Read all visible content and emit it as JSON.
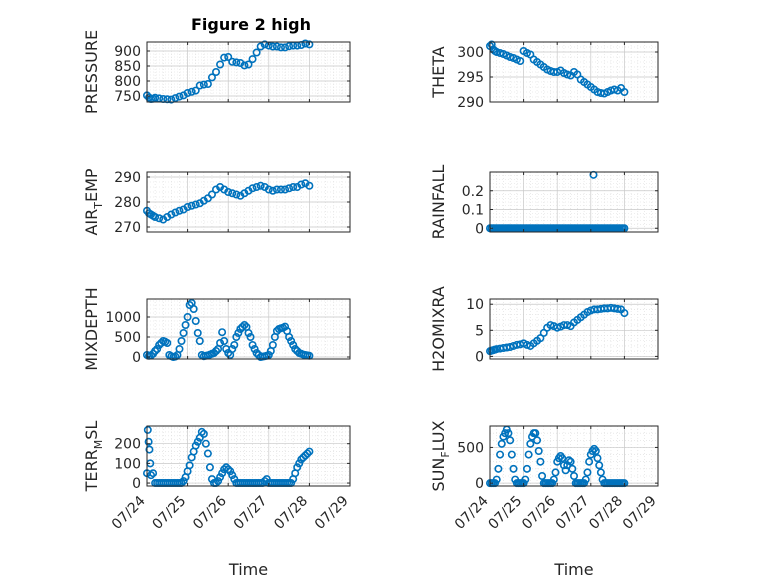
{
  "figure": {
    "title": "Figure 2 high",
    "marker_color": "#0072BD"
  },
  "chart_data": [
    {
      "type": "scatter",
      "name": "pressure",
      "ylabel": "PRESSURE",
      "ylabel_sub": "",
      "ylabel_end": "",
      "ylim": [
        730,
        930
      ],
      "yticks": [
        750,
        800,
        850,
        900
      ],
      "xlim": [
        0,
        5
      ],
      "xticks": [
        0,
        1,
        2,
        3,
        4,
        5
      ],
      "xticklabels": [
        "07/24",
        "07/25",
        "07/26",
        "07/27",
        "07/28",
        "07/29"
      ],
      "xlabel": "",
      "x": [
        0,
        0.05,
        0.1,
        0.15,
        0.2,
        0.3,
        0.4,
        0.5,
        0.6,
        0.7,
        0.8,
        0.9,
        1.0,
        1.1,
        1.2,
        1.3,
        1.4,
        1.5,
        1.6,
        1.7,
        1.8,
        1.9,
        2.0,
        2.1,
        2.2,
        2.3,
        2.4,
        2.5,
        2.6,
        2.7,
        2.8,
        2.9,
        3.0,
        3.1,
        3.2,
        3.3,
        3.4,
        3.5,
        3.6,
        3.7,
        3.8,
        3.9,
        4.0
      ],
      "y": [
        752,
        745,
        740,
        741,
        744,
        742,
        740,
        739,
        738,
        743,
        748,
        752,
        760,
        764,
        768,
        785,
        788,
        790,
        812,
        830,
        855,
        878,
        880,
        864,
        862,
        860,
        852,
        855,
        873,
        895,
        915,
        922,
        918,
        915,
        915,
        912,
        912,
        916,
        918,
        918,
        920,
        925,
        922
      ]
    },
    {
      "type": "scatter",
      "name": "theta",
      "ylabel": "THETA",
      "ylabel_sub": "",
      "ylabel_end": "",
      "ylim": [
        290,
        302
      ],
      "yticks": [
        290,
        295,
        300
      ],
      "xlim": [
        0,
        5
      ],
      "xticks": [
        0,
        1,
        2,
        3,
        4,
        5
      ],
      "xticklabels": [
        "07/24",
        "07/25",
        "07/26",
        "07/27",
        "07/28",
        "07/29"
      ],
      "xlabel": "",
      "x": [
        0,
        0.05,
        0.1,
        0.15,
        0.2,
        0.3,
        0.4,
        0.5,
        0.6,
        0.7,
        0.8,
        0.9,
        1.0,
        1.1,
        1.2,
        1.3,
        1.4,
        1.5,
        1.6,
        1.7,
        1.8,
        1.9,
        2.0,
        2.1,
        2.2,
        2.3,
        2.4,
        2.5,
        2.6,
        2.7,
        2.8,
        2.9,
        3.0,
        3.1,
        3.2,
        3.3,
        3.4,
        3.5,
        3.6,
        3.7,
        3.8,
        3.9,
        4.0
      ],
      "y": [
        301.2,
        301.5,
        300.5,
        300.2,
        300,
        299.8,
        299.6,
        299.3,
        299,
        298.8,
        298.5,
        298.2,
        300.2,
        299.8,
        299.5,
        298.5,
        298,
        297.5,
        297,
        296.5,
        296.2,
        296,
        296,
        296.3,
        295.8,
        295.5,
        295.3,
        296,
        295.5,
        294.5,
        294,
        293.5,
        293,
        292.5,
        292,
        291.8,
        291.7,
        292,
        292.3,
        292.5,
        292.3,
        292.8,
        292
      ]
    },
    {
      "type": "scatter",
      "name": "air_temp",
      "ylabel": "AIR",
      "ylabel_sub": "T",
      "ylabel_end": "EMP",
      "ylim": [
        268,
        292
      ],
      "yticks": [
        270,
        280,
        290
      ],
      "xlim": [
        0,
        5
      ],
      "xticks": [
        0,
        1,
        2,
        3,
        4,
        5
      ],
      "xticklabels": [
        "07/24",
        "07/25",
        "07/26",
        "07/27",
        "07/28",
        "07/29"
      ],
      "xlabel": "",
      "x": [
        0,
        0.05,
        0.1,
        0.15,
        0.2,
        0.3,
        0.4,
        0.5,
        0.6,
        0.7,
        0.8,
        0.9,
        1.0,
        1.1,
        1.2,
        1.3,
        1.4,
        1.5,
        1.6,
        1.7,
        1.8,
        1.9,
        2.0,
        2.1,
        2.2,
        2.3,
        2.4,
        2.5,
        2.6,
        2.7,
        2.8,
        2.9,
        3.0,
        3.1,
        3.2,
        3.3,
        3.4,
        3.5,
        3.6,
        3.7,
        3.8,
        3.9,
        4.0
      ],
      "y": [
        276.5,
        275.5,
        275,
        274.5,
        274,
        273.5,
        273,
        274,
        275,
        275.8,
        276.5,
        277,
        278,
        278.5,
        279,
        279.5,
        280.5,
        281.5,
        283,
        285,
        286,
        285,
        284,
        283.5,
        283,
        282.5,
        283.5,
        284.5,
        285.5,
        286,
        286.5,
        286,
        285,
        284.5,
        285,
        285,
        285,
        285.5,
        286,
        286,
        287,
        287.5,
        286.5
      ]
    },
    {
      "type": "scatter",
      "name": "rainfall",
      "ylabel": "RAINFALL",
      "ylabel_sub": "",
      "ylabel_end": "",
      "ylim": [
        -0.02,
        0.3
      ],
      "yticks": [
        0,
        0.1,
        0.2
      ],
      "xlim": [
        0,
        5
      ],
      "xticks": [
        0,
        1,
        2,
        3,
        4,
        5
      ],
      "xticklabels": [
        "07/24",
        "07/25",
        "07/26",
        "07/27",
        "07/28",
        "07/29"
      ],
      "xlabel": "",
      "x": [
        0,
        0.05,
        0.1,
        0.15,
        0.2,
        0.25,
        0.3,
        0.35,
        0.4,
        0.45,
        0.5,
        0.55,
        0.6,
        0.65,
        0.7,
        0.75,
        0.8,
        0.85,
        0.9,
        0.95,
        1.0,
        1.05,
        1.1,
        1.15,
        1.2,
        1.25,
        1.3,
        1.35,
        1.4,
        1.45,
        1.5,
        1.55,
        1.6,
        1.65,
        1.7,
        1.75,
        1.8,
        1.85,
        1.9,
        1.95,
        2.0,
        2.05,
        2.1,
        2.15,
        2.2,
        2.25,
        2.3,
        2.35,
        2.4,
        2.45,
        2.5,
        2.55,
        2.6,
        2.65,
        2.7,
        2.75,
        2.8,
        2.85,
        2.9,
        2.95,
        3.0,
        3.05,
        3.1,
        3.15,
        3.2,
        3.25,
        3.3,
        3.35,
        3.4,
        3.45,
        3.5,
        3.55,
        3.6,
        3.65,
        3.7,
        3.75,
        3.8,
        3.85,
        3.9,
        3.95,
        4.0,
        3.08
      ],
      "y": [
        0,
        0,
        0,
        0,
        0,
        0,
        0,
        0,
        0,
        0,
        0,
        0,
        0,
        0,
        0,
        0,
        0,
        0,
        0,
        0,
        0,
        0,
        0,
        0,
        0,
        0,
        0,
        0,
        0,
        0,
        0,
        0,
        0,
        0,
        0,
        0,
        0,
        0,
        0,
        0,
        0,
        0,
        0,
        0,
        0,
        0,
        0,
        0,
        0,
        0,
        0,
        0,
        0,
        0,
        0,
        0,
        0,
        0,
        0,
        0,
        0,
        0,
        0,
        0,
        0,
        0,
        0,
        0,
        0,
        0,
        0,
        0,
        0,
        0,
        0,
        0,
        0,
        0,
        0,
        0,
        0,
        0.285
      ]
    },
    {
      "type": "scatter",
      "name": "mixdepth",
      "ylabel": "MIXDEPTH",
      "ylabel_sub": "",
      "ylabel_end": "",
      "ylim": [
        -50,
        1450
      ],
      "yticks": [
        0,
        500,
        1000
      ],
      "xlim": [
        0,
        5
      ],
      "xticks": [
        0,
        1,
        2,
        3,
        4,
        5
      ],
      "xticklabels": [
        "07/24",
        "07/25",
        "07/26",
        "07/27",
        "07/28",
        "07/29"
      ],
      "xlabel": "",
      "x": [
        0,
        0.05,
        0.1,
        0.15,
        0.2,
        0.25,
        0.3,
        0.35,
        0.4,
        0.45,
        0.5,
        0.55,
        0.6,
        0.65,
        0.7,
        0.75,
        0.8,
        0.85,
        0.9,
        0.95,
        1.0,
        1.05,
        1.1,
        1.15,
        1.2,
        1.25,
        1.3,
        1.35,
        1.4,
        1.45,
        1.5,
        1.55,
        1.6,
        1.65,
        1.7,
        1.75,
        1.8,
        1.85,
        1.9,
        1.95,
        2.0,
        2.05,
        2.1,
        2.15,
        2.2,
        2.25,
        2.3,
        2.35,
        2.4,
        2.45,
        2.5,
        2.55,
        2.6,
        2.65,
        2.7,
        2.75,
        2.8,
        2.85,
        2.9,
        2.95,
        3.0,
        3.05,
        3.1,
        3.15,
        3.2,
        3.25,
        3.3,
        3.35,
        3.4,
        3.45,
        3.5,
        3.55,
        3.6,
        3.65,
        3.7,
        3.75,
        3.8,
        3.85,
        3.9,
        3.95,
        4.0
      ],
      "y": [
        50,
        30,
        40,
        80,
        150,
        200,
        300,
        350,
        400,
        380,
        350,
        50,
        20,
        0,
        10,
        50,
        200,
        400,
        600,
        800,
        1000,
        1300,
        1350,
        1200,
        900,
        600,
        400,
        50,
        20,
        30,
        40,
        60,
        80,
        100,
        150,
        200,
        350,
        620,
        400,
        200,
        100,
        50,
        200,
        300,
        500,
        600,
        700,
        750,
        800,
        750,
        600,
        500,
        300,
        200,
        100,
        50,
        0,
        10,
        20,
        30,
        50,
        150,
        300,
        500,
        650,
        700,
        720,
        730,
        760,
        650,
        500,
        400,
        300,
        200,
        150,
        100,
        80,
        60,
        50,
        40,
        30
      ]
    },
    {
      "type": "scatter",
      "name": "h2omixra",
      "ylabel": "H2OMIXRA",
      "ylabel_sub": "",
      "ylabel_end": "",
      "ylim": [
        -0.5,
        11
      ],
      "yticks": [
        0,
        5,
        10
      ],
      "xlim": [
        0,
        5
      ],
      "xticks": [
        0,
        1,
        2,
        3,
        4,
        5
      ],
      "xticklabels": [
        "07/24",
        "07/25",
        "07/26",
        "07/27",
        "07/28",
        "07/29"
      ],
      "xlabel": "",
      "x": [
        0,
        0.05,
        0.1,
        0.15,
        0.2,
        0.3,
        0.4,
        0.5,
        0.6,
        0.7,
        0.8,
        0.9,
        1.0,
        1.1,
        1.2,
        1.3,
        1.4,
        1.5,
        1.6,
        1.7,
        1.8,
        1.9,
        2.0,
        2.1,
        2.2,
        2.3,
        2.4,
        2.5,
        2.6,
        2.7,
        2.8,
        2.9,
        3.0,
        3.1,
        3.2,
        3.3,
        3.4,
        3.5,
        3.6,
        3.7,
        3.8,
        3.9,
        4.0
      ],
      "y": [
        1,
        1.1,
        1.2,
        1.3,
        1.4,
        1.5,
        1.6,
        1.7,
        1.8,
        2,
        2.2,
        2.3,
        2.5,
        2.2,
        2,
        2.5,
        3,
        3.5,
        4.5,
        5.5,
        6,
        5.8,
        5.5,
        5.7,
        6,
        6,
        5.8,
        6.5,
        7,
        7.5,
        8,
        8.5,
        8.8,
        9,
        9,
        9.1,
        9.2,
        9.2,
        9.3,
        9.2,
        9.1,
        9,
        8.3
      ]
    },
    {
      "type": "scatter",
      "name": "terr_msl",
      "ylabel": "TERR",
      "ylabel_sub": "M",
      "ylabel_end": "SL",
      "ylim": [
        -15,
        290
      ],
      "yticks": [
        0,
        100,
        200
      ],
      "xlim": [
        0,
        5
      ],
      "xticks": [
        0,
        1,
        2,
        3,
        4,
        5
      ],
      "xticklabels": [
        "07/24",
        "07/25",
        "07/26",
        "07/27",
        "07/28",
        "07/29"
      ],
      "xlabel": "Time",
      "x": [
        0,
        0.02,
        0.04,
        0.06,
        0.08,
        0.1,
        0.15,
        0.2,
        0.25,
        0.3,
        0.35,
        0.4,
        0.45,
        0.5,
        0.55,
        0.6,
        0.65,
        0.7,
        0.75,
        0.8,
        0.85,
        0.9,
        0.95,
        1.0,
        1.05,
        1.1,
        1.15,
        1.2,
        1.25,
        1.3,
        1.35,
        1.4,
        1.45,
        1.5,
        1.55,
        1.6,
        1.65,
        1.7,
        1.75,
        1.8,
        1.85,
        1.9,
        1.95,
        2.0,
        2.05,
        2.1,
        2.15,
        2.2,
        2.25,
        2.3,
        2.35,
        2.4,
        2.45,
        2.5,
        2.55,
        2.6,
        2.65,
        2.7,
        2.75,
        2.8,
        2.85,
        2.9,
        2.95,
        3.0,
        3.05,
        3.1,
        3.15,
        3.2,
        3.25,
        3.3,
        3.35,
        3.4,
        3.45,
        3.5,
        3.55,
        3.6,
        3.65,
        3.7,
        3.75,
        3.8,
        3.85,
        3.9,
        3.95,
        4.0
      ],
      "y": [
        50,
        270,
        210,
        170,
        100,
        40,
        50,
        0,
        0,
        0,
        0,
        0,
        0,
        0,
        0,
        0,
        0,
        0,
        0,
        0,
        0,
        10,
        30,
        60,
        90,
        130,
        160,
        190,
        210,
        230,
        260,
        250,
        200,
        150,
        80,
        20,
        0,
        0,
        10,
        30,
        50,
        70,
        80,
        70,
        60,
        40,
        20,
        0,
        0,
        0,
        0,
        0,
        0,
        0,
        0,
        0,
        0,
        0,
        0,
        0,
        0,
        10,
        20,
        0,
        0,
        0,
        0,
        0,
        0,
        0,
        0,
        0,
        0,
        0,
        0,
        20,
        50,
        80,
        100,
        120,
        130,
        140,
        150,
        160
      ]
    },
    {
      "type": "scatter",
      "name": "sun_flux",
      "ylabel": "SUN",
      "ylabel_sub": "F",
      "ylabel_end": "LUX",
      "ylim": [
        -40,
        800
      ],
      "yticks": [
        0,
        500
      ],
      "xlim": [
        0,
        5
      ],
      "xticks": [
        0,
        1,
        2,
        3,
        4,
        5
      ],
      "xticklabels": [
        "07/24",
        "07/25",
        "07/26",
        "07/27",
        "07/28",
        "07/29"
      ],
      "xlabel": "Time",
      "x": [
        0,
        0.05,
        0.1,
        0.15,
        0.2,
        0.25,
        0.3,
        0.35,
        0.4,
        0.45,
        0.5,
        0.55,
        0.6,
        0.65,
        0.7,
        0.75,
        0.8,
        0.85,
        0.9,
        0.95,
        1.0,
        1.05,
        1.1,
        1.15,
        1.2,
        1.25,
        1.3,
        1.35,
        1.4,
        1.45,
        1.5,
        1.55,
        1.6,
        1.65,
        1.7,
        1.75,
        1.8,
        1.85,
        1.9,
        1.95,
        2.0,
        2.05,
        2.1,
        2.15,
        2.2,
        2.25,
        2.3,
        2.35,
        2.4,
        2.45,
        2.5,
        2.55,
        2.6,
        2.65,
        2.7,
        2.75,
        2.8,
        2.85,
        2.9,
        2.95,
        3.0,
        3.05,
        3.1,
        3.15,
        3.2,
        3.25,
        3.3,
        3.35,
        3.4,
        3.45,
        3.5,
        3.55,
        3.6,
        3.65,
        3.7,
        3.75,
        3.8,
        3.85,
        3.9,
        3.95,
        4.0
      ],
      "y": [
        0,
        0,
        0,
        0,
        50,
        200,
        400,
        550,
        650,
        700,
        750,
        700,
        600,
        400,
        200,
        50,
        0,
        0,
        0,
        0,
        0,
        50,
        200,
        400,
        550,
        650,
        700,
        700,
        600,
        450,
        300,
        100,
        0,
        0,
        0,
        0,
        0,
        0,
        50,
        150,
        300,
        350,
        380,
        350,
        250,
        180,
        250,
        320,
        300,
        200,
        100,
        0,
        0,
        0,
        0,
        0,
        0,
        50,
        150,
        300,
        400,
        450,
        480,
        450,
        350,
        250,
        150,
        50,
        0,
        0,
        0,
        0,
        0,
        0,
        0,
        0,
        0,
        0,
        0,
        0,
        0
      ]
    }
  ]
}
